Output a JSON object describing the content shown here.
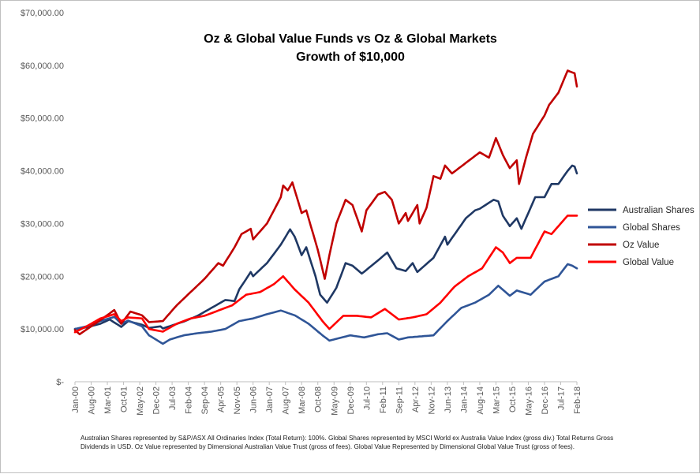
{
  "chart_data": {
    "type": "line",
    "title": "Oz & Global Value Funds vs Oz & Global Markets",
    "subtitle": "Growth of $10,000",
    "ylim": [
      0,
      70000
    ],
    "y_ticks": [
      {
        "value": 0,
        "label": "$-"
      },
      {
        "value": 10000,
        "label": "$10,000.00"
      },
      {
        "value": 20000,
        "label": "$20,000.00"
      },
      {
        "value": 30000,
        "label": "$30,000.00"
      },
      {
        "value": 40000,
        "label": "$40,000.00"
      },
      {
        "value": 50000,
        "label": "$50,000.00"
      },
      {
        "value": 60000,
        "label": "$60,000.00"
      },
      {
        "value": 70000,
        "label": "$70,000.00"
      }
    ],
    "x_start": {
      "year": 2000,
      "month": 1
    },
    "x_end": {
      "year": 2018,
      "month": 2
    },
    "x_ticks": [
      "Jan-00",
      "Aug-00",
      "Mar-01",
      "Oct-01",
      "May-02",
      "Dec-02",
      "Jul-03",
      "Feb-04",
      "Sep-04",
      "Apr-05",
      "Nov-05",
      "Jun-06",
      "Jan-07",
      "Aug-07",
      "Mar-08",
      "Oct-08",
      "May-09",
      "Dec-09",
      "Jul-10",
      "Feb-11",
      "Sep-11",
      "Apr-12",
      "Nov-12",
      "Jun-13",
      "Jan-14",
      "Aug-14",
      "Mar-15",
      "Oct-15",
      "May-16",
      "Dec-16",
      "Jul-17",
      "Feb-18"
    ],
    "series": [
      {
        "name": "Australian Shares",
        "color": "#1f3864",
        "points": [
          [
            "2000-01",
            10000
          ],
          [
            "2000-06",
            10300
          ],
          [
            "2000-12",
            11000
          ],
          [
            "2001-04",
            11800
          ],
          [
            "2001-09",
            10400
          ],
          [
            "2001-12",
            11500
          ],
          [
            "2002-06",
            10800
          ],
          [
            "2002-09",
            10200
          ],
          [
            "2003-02",
            10500
          ],
          [
            "2003-03",
            10100
          ],
          [
            "2003-12",
            11400
          ],
          [
            "2004-06",
            12500
          ],
          [
            "2004-12",
            14000
          ],
          [
            "2005-06",
            15500
          ],
          [
            "2005-10",
            15300
          ],
          [
            "2005-12",
            17500
          ],
          [
            "2006-05",
            20800
          ],
          [
            "2006-06",
            20000
          ],
          [
            "2006-12",
            22500
          ],
          [
            "2007-06",
            26000
          ],
          [
            "2007-10",
            28900
          ],
          [
            "2007-12",
            27500
          ],
          [
            "2008-03",
            24000
          ],
          [
            "2008-05",
            25500
          ],
          [
            "2008-09",
            20000
          ],
          [
            "2008-11",
            16500
          ],
          [
            "2009-02",
            15000
          ],
          [
            "2009-06",
            17800
          ],
          [
            "2009-10",
            22500
          ],
          [
            "2010-01",
            22000
          ],
          [
            "2010-05",
            20500
          ],
          [
            "2010-12",
            23000
          ],
          [
            "2011-04",
            24500
          ],
          [
            "2011-08",
            21500
          ],
          [
            "2011-12",
            21000
          ],
          [
            "2012-03",
            22500
          ],
          [
            "2012-05",
            20800
          ],
          [
            "2012-12",
            23500
          ],
          [
            "2013-05",
            27500
          ],
          [
            "2013-06",
            26000
          ],
          [
            "2014-02",
            31000
          ],
          [
            "2014-06",
            32500
          ],
          [
            "2014-08",
            32800
          ],
          [
            "2015-02",
            34500
          ],
          [
            "2015-04",
            34200
          ],
          [
            "2015-06",
            31500
          ],
          [
            "2015-09",
            29500
          ],
          [
            "2015-12",
            31000
          ],
          [
            "2016-02",
            29000
          ],
          [
            "2016-05",
            32000
          ],
          [
            "2016-08",
            35000
          ],
          [
            "2016-12",
            35000
          ],
          [
            "2017-03",
            37500
          ],
          [
            "2017-06",
            37500
          ],
          [
            "2017-10",
            40000
          ],
          [
            "2017-12",
            41000
          ],
          [
            "2018-01",
            40800
          ],
          [
            "2018-02",
            39500
          ]
        ]
      },
      {
        "name": "Global Shares",
        "color": "#2f5597",
        "points": [
          [
            "2000-01",
            10000
          ],
          [
            "2000-06",
            10500
          ],
          [
            "2000-12",
            11500
          ],
          [
            "2001-06",
            12300
          ],
          [
            "2001-09",
            11000
          ],
          [
            "2001-12",
            11600
          ],
          [
            "2002-06",
            10500
          ],
          [
            "2002-09",
            8800
          ],
          [
            "2003-03",
            7200
          ],
          [
            "2003-06",
            8000
          ],
          [
            "2003-12",
            8800
          ],
          [
            "2004-06",
            9200
          ],
          [
            "2004-12",
            9500
          ],
          [
            "2005-06",
            10000
          ],
          [
            "2005-12",
            11500
          ],
          [
            "2006-06",
            12000
          ],
          [
            "2006-12",
            12800
          ],
          [
            "2007-06",
            13500
          ],
          [
            "2007-12",
            12600
          ],
          [
            "2008-06",
            11000
          ],
          [
            "2008-12",
            8800
          ],
          [
            "2009-03",
            7800
          ],
          [
            "2009-12",
            8800
          ],
          [
            "2010-06",
            8400
          ],
          [
            "2010-12",
            9000
          ],
          [
            "2011-04",
            9200
          ],
          [
            "2011-09",
            8000
          ],
          [
            "2012-01",
            8400
          ],
          [
            "2012-12",
            8800
          ],
          [
            "2013-06",
            11500
          ],
          [
            "2013-12",
            14000
          ],
          [
            "2014-06",
            15000
          ],
          [
            "2014-12",
            16500
          ],
          [
            "2015-04",
            18200
          ],
          [
            "2015-09",
            16300
          ],
          [
            "2015-12",
            17300
          ],
          [
            "2016-06",
            16500
          ],
          [
            "2016-12",
            19000
          ],
          [
            "2017-06",
            20000
          ],
          [
            "2017-10",
            22300
          ],
          [
            "2017-12",
            22000
          ],
          [
            "2018-02",
            21500
          ]
        ]
      },
      {
        "name": "Oz Value",
        "color": "#c00000",
        "points": [
          [
            "2000-01",
            9800
          ],
          [
            "2000-03",
            9000
          ],
          [
            "2000-08",
            10500
          ],
          [
            "2001-01",
            12000
          ],
          [
            "2001-06",
            13600
          ],
          [
            "2001-09",
            11000
          ],
          [
            "2002-01",
            13300
          ],
          [
            "2002-06",
            12600
          ],
          [
            "2002-09",
            11300
          ],
          [
            "2003-03",
            11500
          ],
          [
            "2003-09",
            14500
          ],
          [
            "2004-03",
            17000
          ],
          [
            "2004-09",
            19500
          ],
          [
            "2005-03",
            22500
          ],
          [
            "2005-05",
            22000
          ],
          [
            "2005-10",
            25500
          ],
          [
            "2006-01",
            28000
          ],
          [
            "2006-05",
            29000
          ],
          [
            "2006-06",
            27000
          ],
          [
            "2006-12",
            30000
          ],
          [
            "2007-06",
            35000
          ],
          [
            "2007-07",
            37200
          ],
          [
            "2007-09",
            36300
          ],
          [
            "2007-11",
            37800
          ],
          [
            "2008-03",
            32000
          ],
          [
            "2008-05",
            32500
          ],
          [
            "2008-08",
            28000
          ],
          [
            "2008-10",
            25000
          ],
          [
            "2009-01",
            19500
          ],
          [
            "2009-03",
            24000
          ],
          [
            "2009-06",
            30000
          ],
          [
            "2009-10",
            34500
          ],
          [
            "2010-01",
            33500
          ],
          [
            "2010-05",
            28500
          ],
          [
            "2010-07",
            32500
          ],
          [
            "2010-12",
            35500
          ],
          [
            "2011-03",
            36000
          ],
          [
            "2011-06",
            34500
          ],
          [
            "2011-09",
            30000
          ],
          [
            "2011-12",
            32000
          ],
          [
            "2012-01",
            30500
          ],
          [
            "2012-05",
            33500
          ],
          [
            "2012-06",
            30000
          ],
          [
            "2012-09",
            33000
          ],
          [
            "2012-12",
            39000
          ],
          [
            "2013-03",
            38500
          ],
          [
            "2013-05",
            41000
          ],
          [
            "2013-08",
            39500
          ],
          [
            "2014-02",
            41500
          ],
          [
            "2014-08",
            43500
          ],
          [
            "2014-12",
            42500
          ],
          [
            "2015-03",
            46200
          ],
          [
            "2015-06",
            43000
          ],
          [
            "2015-09",
            40500
          ],
          [
            "2015-12",
            42000
          ],
          [
            "2016-01",
            37500
          ],
          [
            "2016-04",
            42500
          ],
          [
            "2016-07",
            47000
          ],
          [
            "2016-12",
            50500
          ],
          [
            "2017-02",
            52500
          ],
          [
            "2017-06",
            54800
          ],
          [
            "2017-10",
            59000
          ],
          [
            "2018-01",
            58500
          ],
          [
            "2018-02",
            56000
          ]
        ]
      },
      {
        "name": "Global Value",
        "color": "#ff0000",
        "points": [
          [
            "2000-01",
            9400
          ],
          [
            "2000-06",
            10500
          ],
          [
            "2000-12",
            12000
          ],
          [
            "2001-06",
            12800
          ],
          [
            "2001-09",
            11500
          ],
          [
            "2001-12",
            12200
          ],
          [
            "2002-06",
            12000
          ],
          [
            "2002-09",
            10000
          ],
          [
            "2003-03",
            9500
          ],
          [
            "2003-09",
            11000
          ],
          [
            "2004-03",
            12000
          ],
          [
            "2004-09",
            12500
          ],
          [
            "2005-03",
            13500
          ],
          [
            "2005-09",
            14500
          ],
          [
            "2006-03",
            16500
          ],
          [
            "2006-09",
            17000
          ],
          [
            "2007-03",
            18500
          ],
          [
            "2007-07",
            20000
          ],
          [
            "2007-12",
            17500
          ],
          [
            "2008-06",
            15000
          ],
          [
            "2008-12",
            11500
          ],
          [
            "2009-03",
            10000
          ],
          [
            "2009-09",
            12500
          ],
          [
            "2010-03",
            12500
          ],
          [
            "2010-09",
            12200
          ],
          [
            "2011-03",
            13800
          ],
          [
            "2011-09",
            11800
          ],
          [
            "2012-03",
            12200
          ],
          [
            "2012-09",
            12800
          ],
          [
            "2013-03",
            15000
          ],
          [
            "2013-09",
            18000
          ],
          [
            "2014-03",
            20000
          ],
          [
            "2014-09",
            21500
          ],
          [
            "2015-03",
            25500
          ],
          [
            "2015-06",
            24500
          ],
          [
            "2015-09",
            22500
          ],
          [
            "2015-12",
            23500
          ],
          [
            "2016-06",
            23500
          ],
          [
            "2016-09",
            26000
          ],
          [
            "2016-12",
            28500
          ],
          [
            "2017-03",
            28000
          ],
          [
            "2017-07",
            30000
          ],
          [
            "2017-10",
            31500
          ],
          [
            "2018-02",
            31500
          ]
        ]
      }
    ],
    "legend_position": "right"
  },
  "footnote": "Australian Shares represented by S&P/ASX All Ordinaries Index (Total Return): 100%. Global Shares represented by MSCI World ex Australia Value Index (gross div.) Total Returns Gross Dividends in USD. Oz Value represented by Dimensional Australian Value Trust (gross of fees). Global Value Represented by Dimensional Global Value Trust (gross of fees)."
}
